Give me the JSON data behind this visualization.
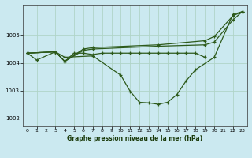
{
  "background_color": "#cbe9f0",
  "grid_color": "#b0d4c8",
  "line_color": "#2d5a1b",
  "title": "Graphe pression niveau de la mer (hPa)",
  "xlim": [
    -0.5,
    23.5
  ],
  "ylim": [
    1001.7,
    1006.1
  ],
  "yticks": [
    1002,
    1003,
    1004,
    1005
  ],
  "xticks": [
    0,
    1,
    2,
    3,
    4,
    5,
    6,
    7,
    8,
    9,
    10,
    11,
    12,
    13,
    14,
    15,
    16,
    17,
    18,
    19,
    20,
    21,
    22,
    23
  ],
  "series": [
    {
      "x": [
        0,
        1,
        3,
        4,
        7,
        10,
        11,
        12,
        13,
        14,
        15,
        16,
        17,
        18,
        20,
        22,
        23
      ],
      "y": [
        1004.35,
        1004.1,
        1004.4,
        1004.2,
        1004.25,
        1003.55,
        1002.97,
        1002.57,
        1002.55,
        1002.5,
        1002.57,
        1002.85,
        1003.35,
        1003.75,
        1004.2,
        1005.75,
        1005.85
      ]
    },
    {
      "x": [
        0,
        3,
        4,
        5,
        6,
        7,
        8,
        9,
        10,
        11,
        12,
        13,
        14,
        15,
        16,
        17,
        18,
        19
      ],
      "y": [
        1004.35,
        1004.4,
        1004.05,
        1004.35,
        1004.35,
        1004.3,
        1004.35,
        1004.35,
        1004.35,
        1004.35,
        1004.35,
        1004.35,
        1004.35,
        1004.35,
        1004.35,
        1004.35,
        1004.35,
        1004.2
      ]
    },
    {
      "x": [
        0,
        3,
        4,
        6,
        7,
        14,
        19,
        20,
        22,
        23
      ],
      "y": [
        1004.35,
        1004.4,
        1004.05,
        1004.45,
        1004.5,
        1004.6,
        1004.65,
        1004.75,
        1005.55,
        1005.85
      ]
    },
    {
      "x": [
        0,
        3,
        4,
        6,
        7,
        14,
        19,
        20,
        22,
        23
      ],
      "y": [
        1004.35,
        1004.4,
        1004.05,
        1004.5,
        1004.55,
        1004.65,
        1004.8,
        1004.95,
        1005.7,
        1005.85
      ]
    }
  ]
}
